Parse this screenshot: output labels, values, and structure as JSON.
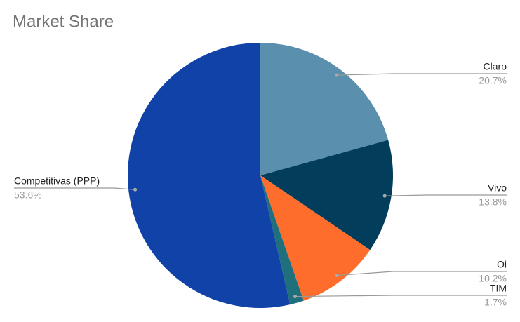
{
  "chart_data": {
    "type": "pie",
    "title": "Market Share",
    "categories": [
      "Claro",
      "Vivo",
      "Oi",
      "TIM",
      "Competitivas (PPP)"
    ],
    "values": [
      20.7,
      13.8,
      10.2,
      1.7,
      53.6
    ],
    "value_labels": [
      "20.7%",
      "13.8%",
      "10.2%",
      "1.7%",
      "53.6%"
    ],
    "colors": [
      "#5b8fae",
      "#023e5c",
      "#ff6d2d",
      "#1f6f7c",
      "#1042a8"
    ]
  }
}
